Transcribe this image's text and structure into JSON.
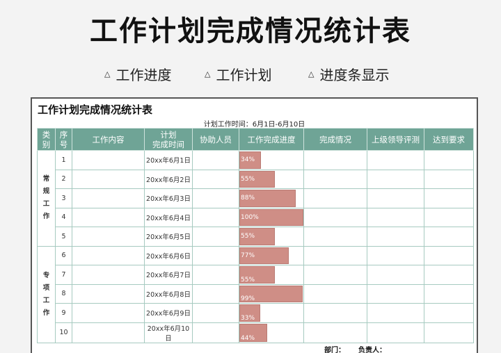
{
  "banner": {
    "title": "工作计划完成情况统计表",
    "features": [
      "工作进度",
      "工作计划",
      "进度条显示"
    ]
  },
  "sheet": {
    "title": "工作计划完成情况统计表",
    "plan_time": "计划工作时间：6月1日-6月10日",
    "headers": {
      "category": [
        "类",
        "别"
      ],
      "seq": [
        "序",
        "号"
      ],
      "content": "工作内容",
      "planned": [
        "计划",
        "完成时间"
      ],
      "assist": "协助人员",
      "progress": "工作完成进度",
      "status": "完成情况",
      "review": "上级领导评测",
      "target": "达到要求"
    },
    "categories": [
      {
        "chars": [
          "常",
          "规",
          "工",
          "作"
        ]
      },
      {
        "chars": [
          "专",
          "项",
          "工",
          "作"
        ]
      }
    ],
    "rows": [
      {
        "seq": "1",
        "date": "20xx年6月1日",
        "progress": 34,
        "label": "34%"
      },
      {
        "seq": "2",
        "date": "20xx年6月2日",
        "progress": 55,
        "label": "55%"
      },
      {
        "seq": "3",
        "date": "20xx年6月3日",
        "progress": 88,
        "label": "88%"
      },
      {
        "seq": "4",
        "date": "20xx年6月4日",
        "progress": 100,
        "label": "100%"
      },
      {
        "seq": "5",
        "date": "20xx年6月5日",
        "progress": 55,
        "label": "55%"
      },
      {
        "seq": "6",
        "date": "20xx年6月6日",
        "progress": 77,
        "label": "77%"
      },
      {
        "seq": "7",
        "date": "20xx年6月7日",
        "progress": 55,
        "label": "55%"
      },
      {
        "seq": "8",
        "date": "20xx年6月8日",
        "progress": 99,
        "label": "99%"
      },
      {
        "seq": "9",
        "date": "20xx年6月9日",
        "progress": 33,
        "label": "33%"
      },
      {
        "seq": "10",
        "date": "20xx年6月10日",
        "progress": 44,
        "label": "44%"
      }
    ],
    "footer": {
      "department": "部门：",
      "owner": "负责人："
    }
  },
  "colors": {
    "header_bg": "#6fa496",
    "bar_fill": "#cf8e86",
    "grid_line": "#a6cac0"
  }
}
